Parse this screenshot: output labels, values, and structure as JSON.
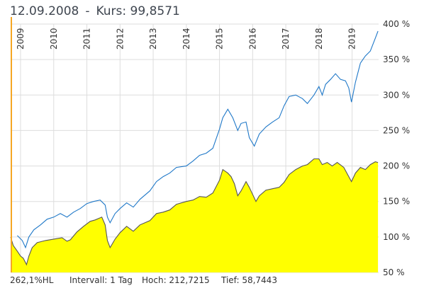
{
  "header": {
    "date": "12.09.2008",
    "separator": "-",
    "kurs_text": "Kurs: 99,8571"
  },
  "footer": {
    "change": "262,1%HL",
    "interval": "Intervall: 1 Tag",
    "high": "Hoch: 212,7215",
    "low": "Tief: 58,7443"
  },
  "colors": {
    "area_fill": "#ffff00",
    "area_line": "#555555",
    "blue_line": "#1f78c8",
    "start_marker": "#f5a623",
    "grid": "#dddddd"
  },
  "chart_data": {
    "type": "area",
    "x_unit": "year",
    "xlim": [
      2008.7,
      2019.8
    ],
    "ylim": [
      50,
      400
    ],
    "x_ticks": [
      "2009",
      "2010",
      "2011",
      "2012",
      "2013",
      "2014",
      "2015",
      "2016",
      "2017",
      "2018",
      "2019"
    ],
    "y_ticks": [
      "50 %",
      "100 %",
      "150 %",
      "200 %",
      "250 %",
      "300 %",
      "350 %",
      "400 %"
    ],
    "y_tick_values": [
      50,
      100,
      150,
      200,
      250,
      300,
      350,
      400
    ],
    "series": [
      {
        "style": "area",
        "points": [
          [
            2008.7,
            100
          ],
          [
            2008.78,
            88
          ],
          [
            2008.9,
            80
          ],
          [
            2009.0,
            73
          ],
          [
            2009.08,
            70
          ],
          [
            2009.18,
            61
          ],
          [
            2009.25,
            73
          ],
          [
            2009.35,
            85
          ],
          [
            2009.5,
            92
          ],
          [
            2009.75,
            95
          ],
          [
            2010.0,
            97
          ],
          [
            2010.25,
            99
          ],
          [
            2010.4,
            94
          ],
          [
            2010.5,
            96
          ],
          [
            2010.7,
            107
          ],
          [
            2010.9,
            115
          ],
          [
            2011.1,
            122
          ],
          [
            2011.25,
            124
          ],
          [
            2011.45,
            128
          ],
          [
            2011.55,
            117
          ],
          [
            2011.62,
            95
          ],
          [
            2011.7,
            85
          ],
          [
            2011.85,
            97
          ],
          [
            2012.0,
            106
          ],
          [
            2012.2,
            115
          ],
          [
            2012.4,
            108
          ],
          [
            2012.6,
            117
          ],
          [
            2012.9,
            123
          ],
          [
            2013.1,
            133
          ],
          [
            2013.3,
            135
          ],
          [
            2013.5,
            138
          ],
          [
            2013.7,
            146
          ],
          [
            2014.0,
            150
          ],
          [
            2014.2,
            152
          ],
          [
            2014.4,
            157
          ],
          [
            2014.6,
            156
          ],
          [
            2014.8,
            162
          ],
          [
            2015.0,
            180
          ],
          [
            2015.1,
            195
          ],
          [
            2015.25,
            190
          ],
          [
            2015.35,
            185
          ],
          [
            2015.45,
            175
          ],
          [
            2015.55,
            158
          ],
          [
            2015.65,
            165
          ],
          [
            2015.8,
            178
          ],
          [
            2015.9,
            170
          ],
          [
            2016.0,
            160
          ],
          [
            2016.1,
            150
          ],
          [
            2016.2,
            158
          ],
          [
            2016.4,
            166
          ],
          [
            2016.6,
            168
          ],
          [
            2016.8,
            170
          ],
          [
            2016.95,
            177
          ],
          [
            2017.1,
            188
          ],
          [
            2017.3,
            195
          ],
          [
            2017.5,
            200
          ],
          [
            2017.65,
            202
          ],
          [
            2017.85,
            210
          ],
          [
            2018.0,
            210
          ],
          [
            2018.1,
            202
          ],
          [
            2018.25,
            205
          ],
          [
            2018.4,
            200
          ],
          [
            2018.55,
            205
          ],
          [
            2018.75,
            198
          ],
          [
            2018.9,
            185
          ],
          [
            2018.98,
            178
          ],
          [
            2019.1,
            190
          ],
          [
            2019.25,
            198
          ],
          [
            2019.4,
            195
          ],
          [
            2019.55,
            202
          ],
          [
            2019.7,
            206
          ],
          [
            2019.78,
            205
          ]
        ]
      },
      {
        "style": "line",
        "points": [
          [
            2008.9,
            102
          ],
          [
            2009.05,
            95
          ],
          [
            2009.15,
            85
          ],
          [
            2009.25,
            100
          ],
          [
            2009.4,
            110
          ],
          [
            2009.6,
            117
          ],
          [
            2009.8,
            125
          ],
          [
            2010.0,
            128
          ],
          [
            2010.2,
            133
          ],
          [
            2010.4,
            128
          ],
          [
            2010.6,
            135
          ],
          [
            2010.8,
            140
          ],
          [
            2011.0,
            147
          ],
          [
            2011.2,
            150
          ],
          [
            2011.4,
            152
          ],
          [
            2011.55,
            145
          ],
          [
            2011.62,
            128
          ],
          [
            2011.7,
            120
          ],
          [
            2011.85,
            133
          ],
          [
            2012.0,
            140
          ],
          [
            2012.2,
            148
          ],
          [
            2012.4,
            142
          ],
          [
            2012.6,
            153
          ],
          [
            2012.9,
            165
          ],
          [
            2013.1,
            178
          ],
          [
            2013.3,
            185
          ],
          [
            2013.5,
            190
          ],
          [
            2013.7,
            198
          ],
          [
            2014.0,
            200
          ],
          [
            2014.2,
            207
          ],
          [
            2014.4,
            215
          ],
          [
            2014.6,
            218
          ],
          [
            2014.8,
            225
          ],
          [
            2015.0,
            252
          ],
          [
            2015.1,
            268
          ],
          [
            2015.25,
            280
          ],
          [
            2015.4,
            268
          ],
          [
            2015.55,
            250
          ],
          [
            2015.65,
            260
          ],
          [
            2015.8,
            262
          ],
          [
            2015.9,
            240
          ],
          [
            2016.05,
            228
          ],
          [
            2016.2,
            245
          ],
          [
            2016.4,
            255
          ],
          [
            2016.6,
            262
          ],
          [
            2016.8,
            268
          ],
          [
            2016.95,
            285
          ],
          [
            2017.1,
            298
          ],
          [
            2017.3,
            300
          ],
          [
            2017.5,
            295
          ],
          [
            2017.65,
            288
          ],
          [
            2017.85,
            300
          ],
          [
            2018.0,
            312
          ],
          [
            2018.1,
            300
          ],
          [
            2018.2,
            315
          ],
          [
            2018.35,
            322
          ],
          [
            2018.5,
            330
          ],
          [
            2018.65,
            322
          ],
          [
            2018.8,
            320
          ],
          [
            2018.9,
            310
          ],
          [
            2018.98,
            290
          ],
          [
            2019.1,
            318
          ],
          [
            2019.25,
            345
          ],
          [
            2019.4,
            355
          ],
          [
            2019.55,
            362
          ],
          [
            2019.7,
            380
          ],
          [
            2019.78,
            390
          ]
        ]
      }
    ]
  }
}
